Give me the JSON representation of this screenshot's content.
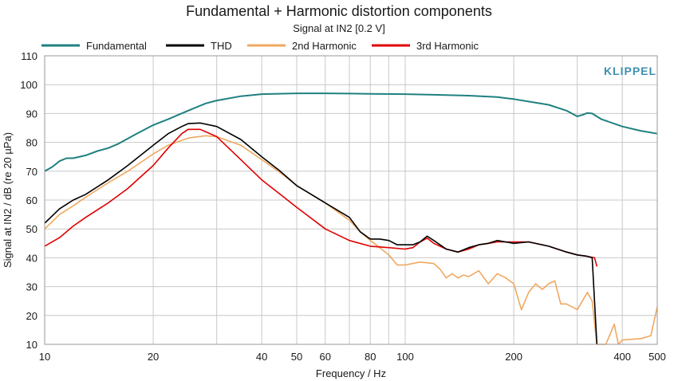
{
  "chart_data": {
    "type": "line",
    "title": "Fundamental + Harmonic distortion components",
    "subtitle": "Signal at IN2 [0.2 V]",
    "xlabel": "Frequency / Hz",
    "ylabel": "Signal at IN2 / dB (re 20 µPa)",
    "x_scale": "log",
    "xlim": [
      10,
      500
    ],
    "ylim": [
      10,
      110
    ],
    "x_ticks": [
      10,
      20,
      40,
      50,
      60,
      80,
      100,
      200,
      400,
      500
    ],
    "x_tick_labels": [
      "10",
      "20",
      "40",
      "50",
      "60",
      "80",
      "100",
      "200",
      "400",
      "500"
    ],
    "x_minor_gridlines": [
      30,
      70,
      90,
      300
    ],
    "y_ticks": [
      10,
      20,
      30,
      40,
      50,
      60,
      70,
      80,
      90,
      100,
      110
    ],
    "y_tick_labels": [
      "10",
      "20",
      "30",
      "40",
      "50",
      "60",
      "70",
      "80",
      "90",
      "100",
      "110"
    ],
    "grid": true,
    "legend_position": "top",
    "logo": "KLIPPEL",
    "series": [
      {
        "name": "Fundamental",
        "color": "#1f8080",
        "points": [
          [
            10,
            70
          ],
          [
            10.5,
            71.5
          ],
          [
            11,
            73.5
          ],
          [
            11.5,
            74.5
          ],
          [
            12,
            74.5
          ],
          [
            13,
            75.5
          ],
          [
            14,
            77
          ],
          [
            15,
            78
          ],
          [
            16,
            79.5
          ],
          [
            18,
            83
          ],
          [
            20,
            86
          ],
          [
            22,
            88
          ],
          [
            25,
            91
          ],
          [
            28,
            93.5
          ],
          [
            30,
            94.5
          ],
          [
            35,
            96
          ],
          [
            40,
            96.7
          ],
          [
            50,
            97
          ],
          [
            60,
            97
          ],
          [
            70,
            96.9
          ],
          [
            80,
            96.8
          ],
          [
            100,
            96.7
          ],
          [
            120,
            96.5
          ],
          [
            150,
            96.2
          ],
          [
            180,
            95.7
          ],
          [
            200,
            95
          ],
          [
            250,
            93
          ],
          [
            280,
            91
          ],
          [
            300,
            89
          ],
          [
            310,
            89.5
          ],
          [
            320,
            90.2
          ],
          [
            330,
            90
          ],
          [
            350,
            88
          ],
          [
            400,
            85.5
          ],
          [
            450,
            84
          ],
          [
            500,
            83
          ]
        ]
      },
      {
        "name": "THD",
        "color": "#000000",
        "points": [
          [
            10,
            52
          ],
          [
            11,
            57
          ],
          [
            12,
            60
          ],
          [
            13,
            62
          ],
          [
            15,
            67
          ],
          [
            17,
            72
          ],
          [
            20,
            79
          ],
          [
            22,
            83
          ],
          [
            24,
            85.5
          ],
          [
            25,
            86.5
          ],
          [
            27,
            86.7
          ],
          [
            30,
            85.5
          ],
          [
            35,
            81
          ],
          [
            40,
            75
          ],
          [
            45,
            70
          ],
          [
            50,
            65
          ],
          [
            60,
            59
          ],
          [
            70,
            54
          ],
          [
            75,
            49
          ],
          [
            80,
            46.5
          ],
          [
            85,
            46.5
          ],
          [
            90,
            46
          ],
          [
            95,
            44.5
          ],
          [
            100,
            44.5
          ],
          [
            105,
            44.5
          ],
          [
            110,
            45.5
          ],
          [
            115,
            47.5
          ],
          [
            120,
            46
          ],
          [
            130,
            43
          ],
          [
            140,
            42
          ],
          [
            150,
            43.5
          ],
          [
            160,
            44.5
          ],
          [
            170,
            45
          ],
          [
            180,
            46
          ],
          [
            200,
            45
          ],
          [
            220,
            45.5
          ],
          [
            250,
            44
          ],
          [
            280,
            42
          ],
          [
            300,
            41
          ],
          [
            320,
            40.5
          ],
          [
            330,
            40
          ],
          [
            340,
            10
          ]
        ]
      },
      {
        "name": "2nd Harmonic",
        "color": "#f0a860",
        "points": [
          [
            10,
            50
          ],
          [
            11,
            55
          ],
          [
            12,
            58
          ],
          [
            13,
            61
          ],
          [
            15,
            66
          ],
          [
            17,
            70
          ],
          [
            20,
            76
          ],
          [
            22,
            79
          ],
          [
            25,
            81.5
          ],
          [
            28,
            82.3
          ],
          [
            30,
            82
          ],
          [
            35,
            79
          ],
          [
            40,
            74
          ],
          [
            45,
            69.5
          ],
          [
            50,
            65
          ],
          [
            60,
            59
          ],
          [
            70,
            53
          ],
          [
            75,
            49
          ],
          [
            80,
            46
          ],
          [
            85,
            43.5
          ],
          [
            90,
            41
          ],
          [
            95,
            37.5
          ],
          [
            100,
            37.5
          ],
          [
            110,
            38.5
          ],
          [
            120,
            38
          ],
          [
            125,
            36
          ],
          [
            130,
            33
          ],
          [
            135,
            34.5
          ],
          [
            140,
            33
          ],
          [
            145,
            34
          ],
          [
            150,
            33.5
          ],
          [
            160,
            35.5
          ],
          [
            170,
            31
          ],
          [
            180,
            34.5
          ],
          [
            190,
            33
          ],
          [
            200,
            31
          ],
          [
            210,
            22
          ],
          [
            220,
            28
          ],
          [
            230,
            31
          ],
          [
            240,
            29
          ],
          [
            250,
            31
          ],
          [
            260,
            32
          ],
          [
            270,
            24
          ],
          [
            280,
            24
          ],
          [
            300,
            22
          ],
          [
            320,
            28
          ],
          [
            330,
            25
          ],
          [
            340,
            10
          ],
          [
            350,
            10
          ],
          [
            360,
            10
          ],
          [
            380,
            17
          ],
          [
            390,
            10
          ],
          [
            400,
            11.5
          ],
          [
            450,
            12
          ],
          [
            480,
            13
          ],
          [
            500,
            23
          ]
        ]
      },
      {
        "name": "3rd Harmonic",
        "color": "#e00000",
        "points": [
          [
            10,
            44
          ],
          [
            11,
            47
          ],
          [
            12,
            51
          ],
          [
            13,
            54
          ],
          [
            15,
            59
          ],
          [
            17,
            64
          ],
          [
            20,
            72
          ],
          [
            22,
            78
          ],
          [
            24,
            83
          ],
          [
            25,
            84.5
          ],
          [
            27,
            84.5
          ],
          [
            30,
            82
          ],
          [
            35,
            74
          ],
          [
            40,
            67
          ],
          [
            45,
            62
          ],
          [
            50,
            57.5
          ],
          [
            60,
            50
          ],
          [
            70,
            46
          ],
          [
            80,
            44
          ],
          [
            90,
            43.5
          ],
          [
            100,
            43
          ],
          [
            105,
            43.5
          ],
          [
            110,
            45.5
          ],
          [
            115,
            46.8
          ],
          [
            120,
            45
          ],
          [
            130,
            43
          ],
          [
            140,
            42
          ],
          [
            150,
            43
          ],
          [
            160,
            44.5
          ],
          [
            170,
            45
          ],
          [
            180,
            45.5
          ],
          [
            200,
            45.5
          ],
          [
            220,
            45.5
          ],
          [
            250,
            44
          ],
          [
            280,
            42
          ],
          [
            300,
            41
          ],
          [
            320,
            40.5
          ],
          [
            335,
            40
          ],
          [
            340,
            37
          ]
        ]
      }
    ]
  }
}
